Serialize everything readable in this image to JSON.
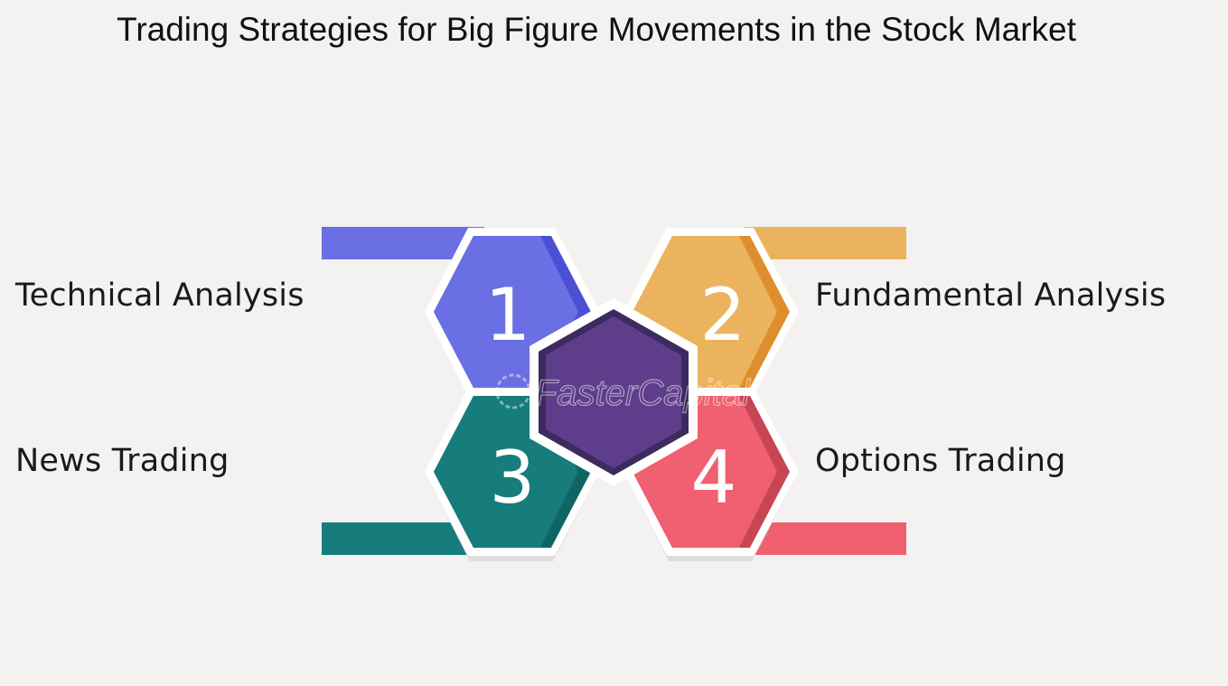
{
  "title": "Trading Strategies for Big Figure Movements in the Stock Market",
  "watermark": "FasterCapital",
  "items": [
    {
      "number": "1",
      "label": "Technical Analysis",
      "color": "#6a6fe3",
      "dark": "#4a4fd4"
    },
    {
      "number": "2",
      "label": "Fundamental Analysis",
      "color": "#ecb35f",
      "dark": "#de8e2c"
    },
    {
      "number": "3",
      "label": "News Trading",
      "color": "#167c7c",
      "dark": "#0f6464"
    },
    {
      "number": "4",
      "label": "Options Trading",
      "color": "#f06070",
      "dark": "#c84555"
    }
  ],
  "center_color": "#5e3e8a"
}
